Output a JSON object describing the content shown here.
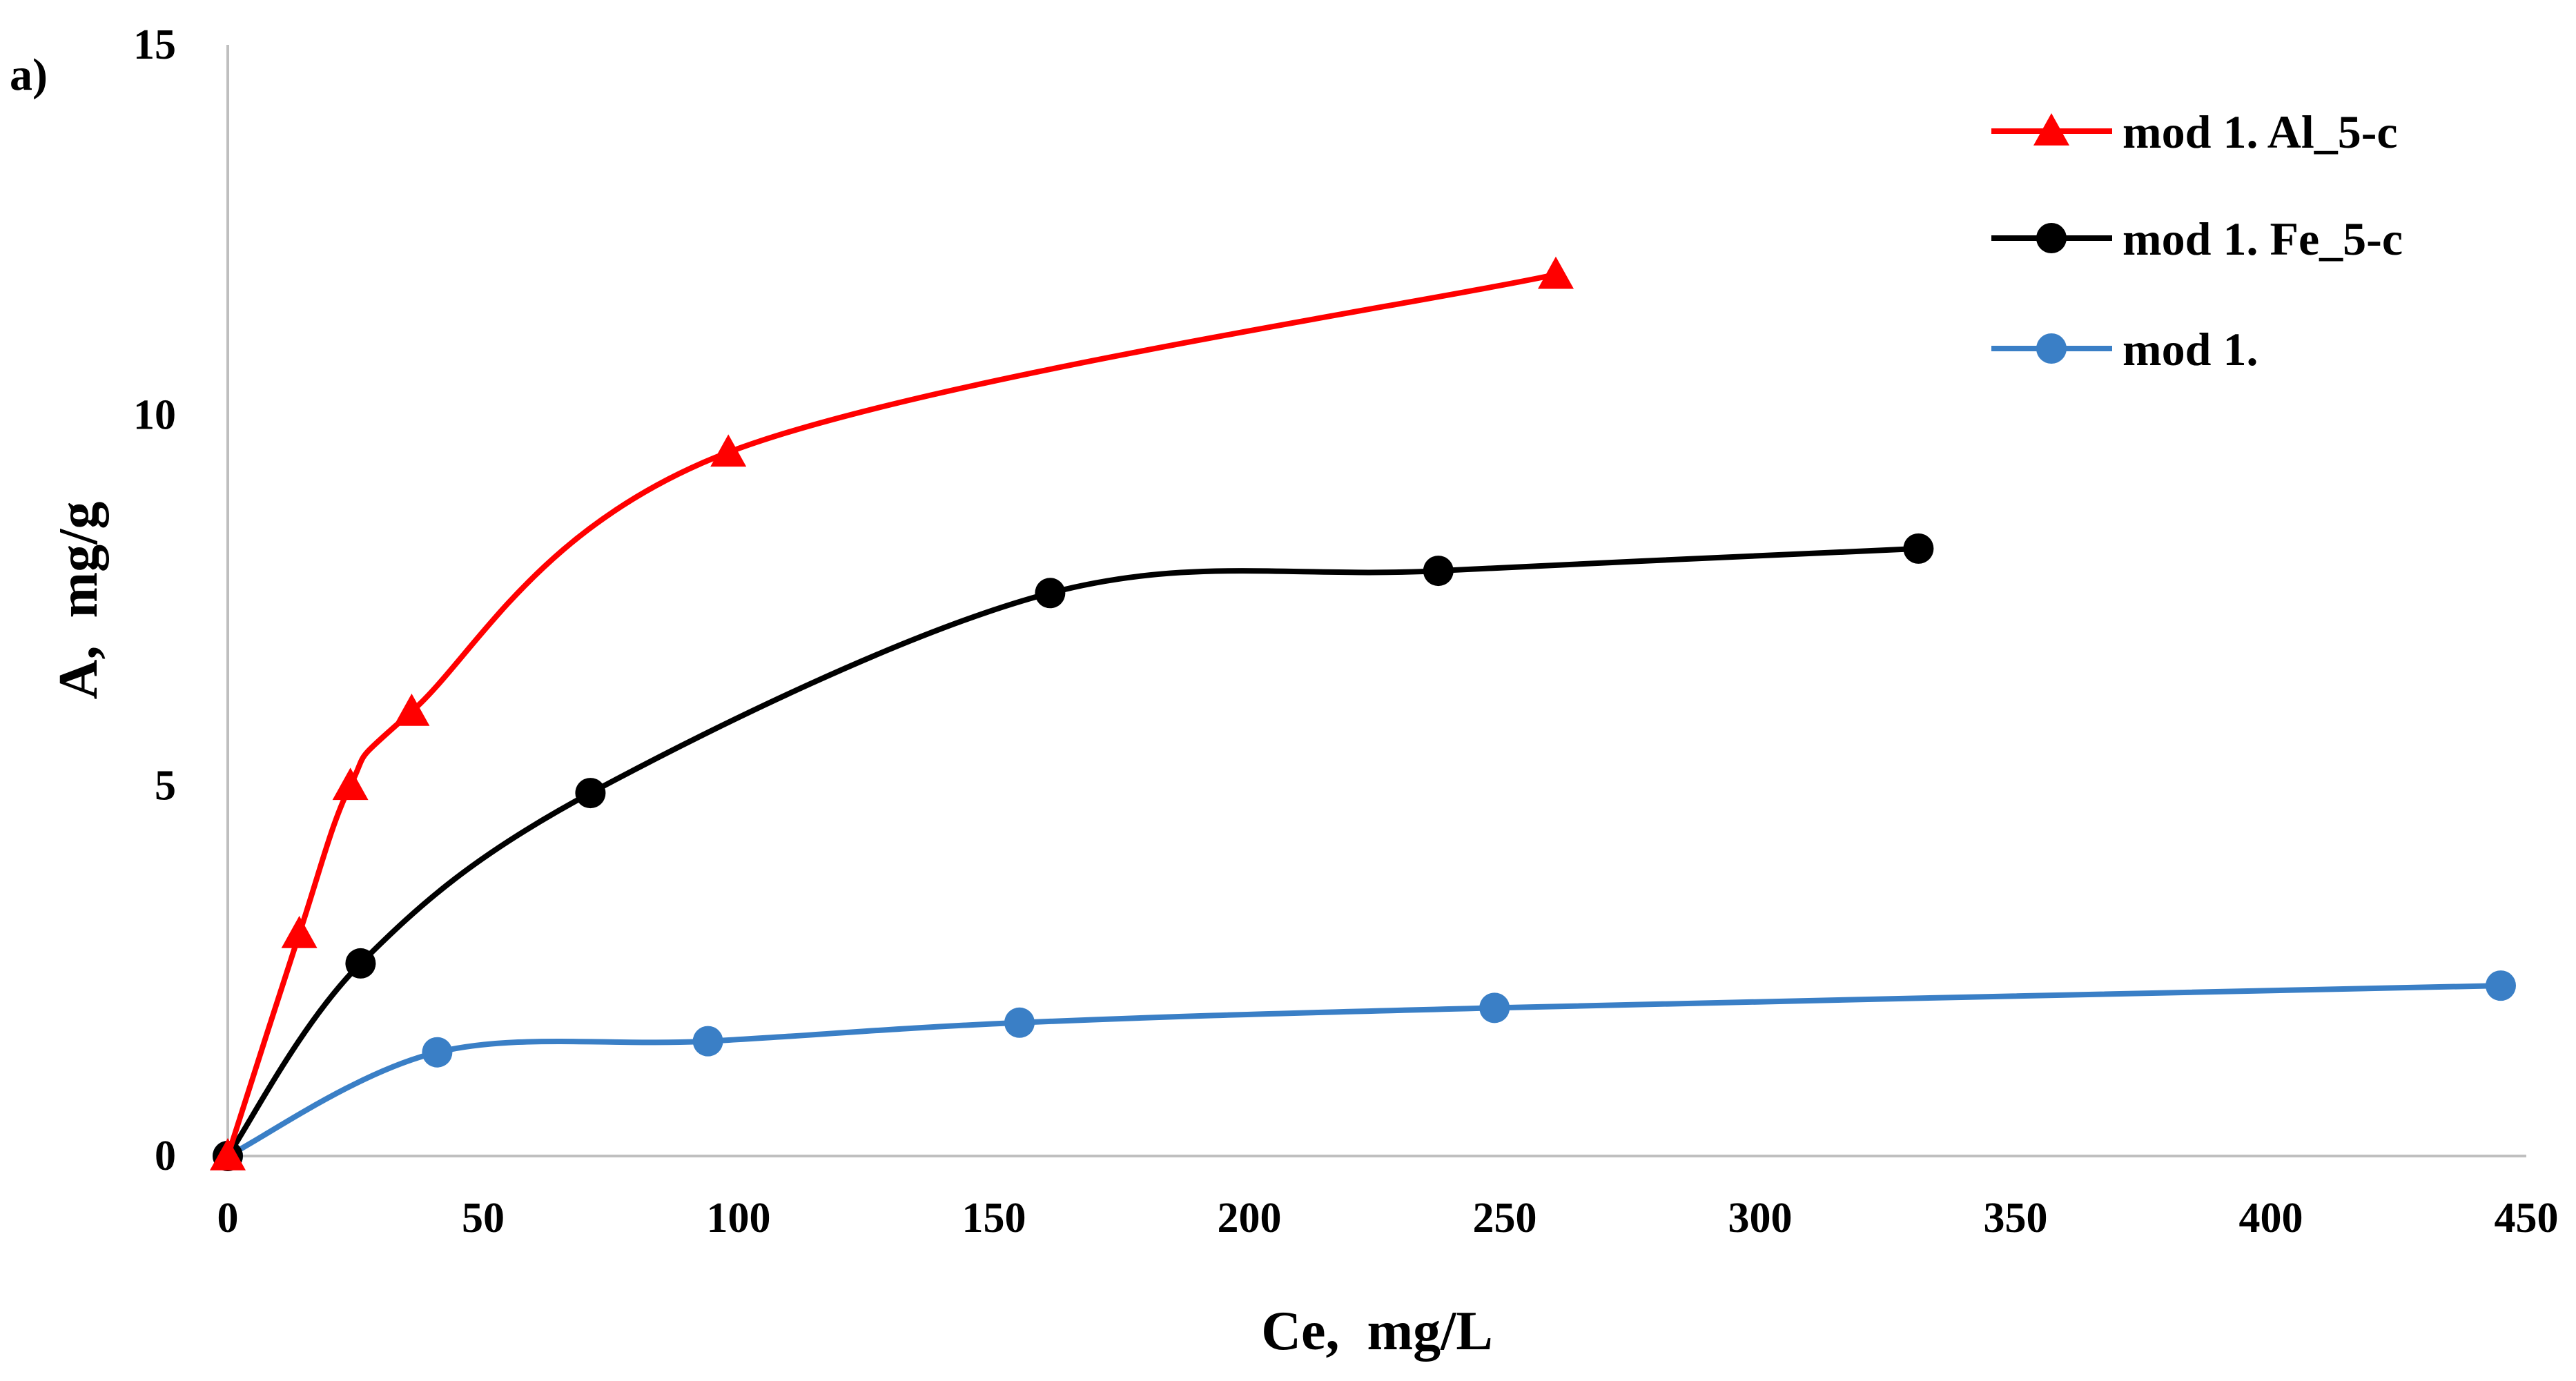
{
  "chart_data": {
    "type": "line",
    "panel_label": "a)",
    "title": "",
    "xlabel": "Ce,  mg/L",
    "ylabel": "A,  mg/g",
    "xlim": [
      0,
      450
    ],
    "ylim": [
      0,
      15
    ],
    "xticks": [
      0,
      50,
      100,
      150,
      200,
      250,
      300,
      350,
      400,
      450
    ],
    "yticks": [
      0,
      5,
      10,
      15
    ],
    "grid": false,
    "legend_position": "top-right",
    "series": [
      {
        "name": "mod 1. Al_5-c",
        "color": "#ff0000",
        "marker": "triangle",
        "x": [
          0,
          14,
          24,
          36,
          98,
          260
        ],
        "y": [
          0,
          3.0,
          5.0,
          6.0,
          9.5,
          11.9
        ]
      },
      {
        "name": "mod 1. Fe_5-c",
        "color": "#000000",
        "marker": "circle",
        "x": [
          0,
          26,
          71,
          161,
          237,
          331
        ],
        "y": [
          0,
          2.6,
          4.9,
          7.6,
          7.9,
          8.2
        ]
      },
      {
        "name": "mod 1.",
        "color": "#3a7fc6",
        "marker": "circle",
        "x": [
          0,
          41,
          94,
          155,
          248,
          445
        ],
        "y": [
          0,
          1.4,
          1.55,
          1.8,
          2.0,
          2.3
        ]
      }
    ]
  }
}
